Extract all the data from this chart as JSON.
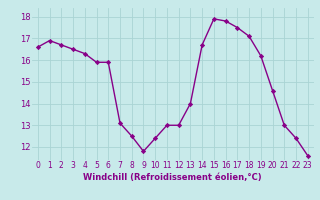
{
  "x": [
    0,
    1,
    2,
    3,
    4,
    5,
    6,
    7,
    8,
    9,
    10,
    11,
    12,
    13,
    14,
    15,
    16,
    17,
    18,
    19,
    20,
    21,
    22,
    23
  ],
  "y": [
    16.6,
    16.9,
    16.7,
    16.5,
    16.3,
    15.9,
    15.9,
    13.1,
    12.5,
    11.8,
    12.4,
    13.0,
    13.0,
    14.0,
    16.7,
    17.9,
    17.8,
    17.5,
    17.1,
    16.2,
    14.6,
    13.0,
    12.4,
    11.6
  ],
  "line_color": "#880088",
  "marker": "D",
  "markersize": 2.2,
  "linewidth": 1.0,
  "bg_color": "#c8eaea",
  "grid_color": "#aad4d4",
  "xlabel": "Windchill (Refroidissement éolien,°C)",
  "xlabel_color": "#880088",
  "tick_color": "#880088",
  "label_color": "#880088",
  "ylim": [
    11.4,
    18.4
  ],
  "xlim": [
    -0.5,
    23.5
  ],
  "yticks": [
    12,
    13,
    14,
    15,
    16,
    17,
    18
  ],
  "xticks": [
    0,
    1,
    2,
    3,
    4,
    5,
    6,
    7,
    8,
    9,
    10,
    11,
    12,
    13,
    14,
    15,
    16,
    17,
    18,
    19,
    20,
    21,
    22,
    23
  ],
  "xlabel_fontsize": 6.0,
  "tick_fontsize": 5.5,
  "ytick_fontsize": 6.0
}
